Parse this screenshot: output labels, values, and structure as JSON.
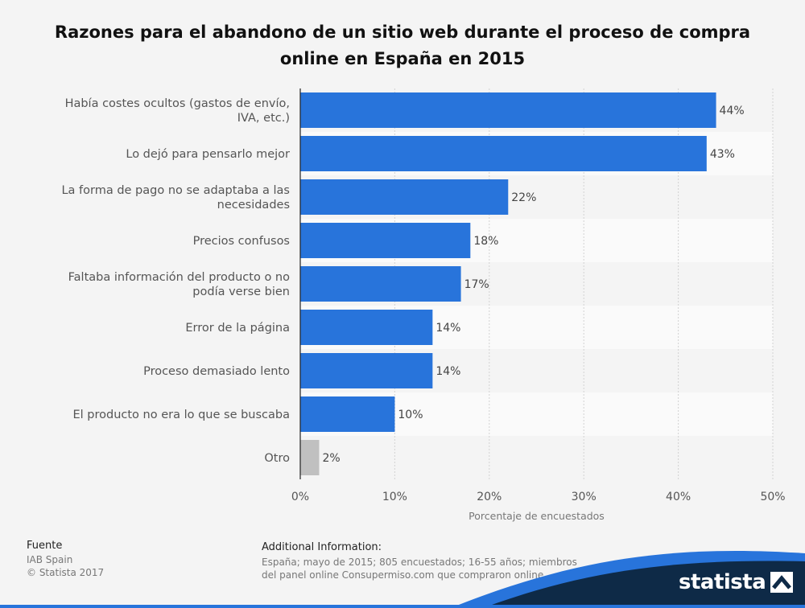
{
  "header": {
    "title": "Razones para el abandono de un sitio web durante el proceso de compra online en España en 2015"
  },
  "chart_data": {
    "type": "bar",
    "orientation": "horizontal",
    "categories": [
      "Había costes ocultos (gastos de envío, IVA, etc.)",
      "Lo dejó para pensarlo mejor",
      "La forma de pago no se adaptaba a las necesidades",
      "Precios confusos",
      "Faltaba información del producto o no podía verse bien",
      "Error de la página",
      "Proceso demasiado lento",
      "El producto no era lo que se buscaba",
      "Otro"
    ],
    "category_lines": [
      [
        "Había costes ocultos (gastos de envío,",
        "IVA, etc.)"
      ],
      [
        "Lo dejó para pensarlo mejor"
      ],
      [
        "La forma de pago no se adaptaba a las",
        "necesidades"
      ],
      [
        "Precios confusos"
      ],
      [
        "Faltaba información del producto o no",
        "podía verse bien"
      ],
      [
        "Error de la página"
      ],
      [
        "Proceso demasiado lento"
      ],
      [
        "El producto no era lo que se buscaba"
      ],
      [
        "Otro"
      ]
    ],
    "values": [
      44,
      43,
      22,
      18,
      17,
      14,
      14,
      10,
      2
    ],
    "value_labels": [
      "44%",
      "43%",
      "22%",
      "18%",
      "17%",
      "14%",
      "14%",
      "10%",
      "2%"
    ],
    "bar_colors": [
      "#2874db",
      "#2874db",
      "#2874db",
      "#2874db",
      "#2874db",
      "#2874db",
      "#2874db",
      "#2874db",
      "#c0c0c0"
    ],
    "xlim": [
      0,
      50
    ],
    "xticks": [
      0,
      10,
      20,
      30,
      40,
      50
    ],
    "xtick_labels": [
      "0%",
      "10%",
      "20%",
      "30%",
      "40%",
      "50%"
    ],
    "xlabel": "Porcentaje de encuestados",
    "grid": true
  },
  "footer": {
    "source_title": "Fuente",
    "source_name": "IAB Spain",
    "copyright": "© Statista 2017",
    "info_title": "Additional Information:",
    "info_text": "España; mayo de 2015; 805 encuestados; 16-55 años; miembros del panel online Consupermiso.com que compraron online"
  },
  "brand": {
    "logo_text": "statista",
    "dark_color": "#0e2a47",
    "accent_color": "#2874db"
  }
}
